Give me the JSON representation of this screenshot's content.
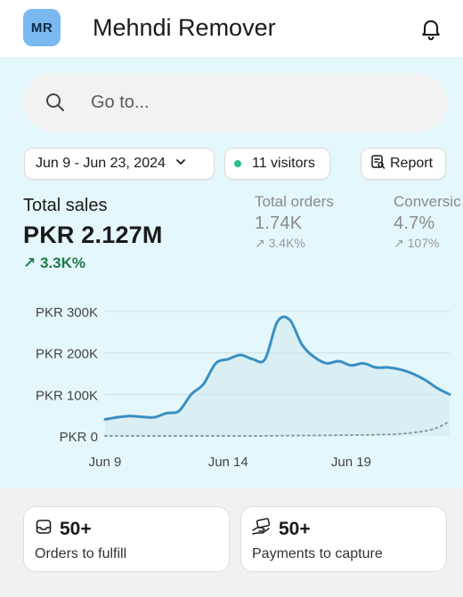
{
  "header": {
    "avatar_initials": "MR",
    "store_name": "Mehndi Remover",
    "notification_icon": "bell-icon"
  },
  "search": {
    "placeholder": "Go to...",
    "icon": "search-icon"
  },
  "filters": {
    "date_range": "Jun 9 - Jun 23, 2024",
    "visitors": "11 visitors",
    "report_label": "Report"
  },
  "metrics": {
    "total_sales": {
      "label": "Total sales",
      "value": "PKR 2.127M",
      "change": "3.3K%"
    },
    "total_orders": {
      "label": "Total orders",
      "value": "1.74K",
      "change": "3.4K%"
    },
    "conversion": {
      "label": "Conversic",
      "value": "4.7%",
      "change": "107%"
    }
  },
  "chart_data": {
    "type": "line",
    "x_tick_labels": [
      "Jun 9",
      "Jun 14",
      "Jun 19"
    ],
    "y_tick_labels": [
      "PKR 300K",
      "PKR 200K",
      "PKR 100K",
      "PKR 0"
    ],
    "ylim": [
      0,
      300000
    ],
    "grid": true,
    "series": [
      {
        "style": "solid",
        "color": "#3a8fc2",
        "x": [
          0,
          0.5,
          1,
          1.5,
          2,
          2.5,
          3,
          3.5,
          4,
          4.5,
          5,
          5.5,
          6,
          6.5,
          7,
          7.5,
          8,
          8.5,
          9,
          9.5,
          10,
          10.5,
          11,
          11.5,
          12,
          12.5,
          13,
          13.5,
          14
        ],
        "values": [
          40000,
          45000,
          48000,
          46000,
          45000,
          55000,
          60000,
          100000,
          125000,
          175000,
          185000,
          195000,
          185000,
          185000,
          275000,
          280000,
          220000,
          190000,
          175000,
          180000,
          170000,
          175000,
          165000,
          165000,
          160000,
          150000,
          135000,
          115000,
          100000
        ]
      },
      {
        "style": "dotted",
        "color": "#8a9aa3",
        "x": [
          0,
          2,
          4,
          6,
          8,
          10,
          11,
          12,
          13,
          13.5,
          14
        ],
        "values": [
          0,
          0,
          0,
          0,
          1000,
          2000,
          3000,
          5000,
          12000,
          20000,
          35000
        ]
      }
    ]
  },
  "cards": [
    {
      "icon": "inbox-icon",
      "count": "50+",
      "label": "Orders to fulfill"
    },
    {
      "icon": "hand-payment-icon",
      "count": "50+",
      "label": "Payments to capture"
    }
  ]
}
